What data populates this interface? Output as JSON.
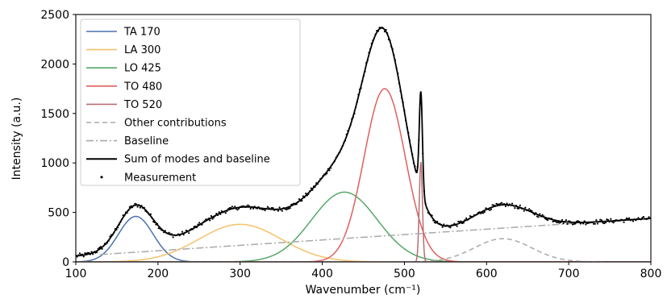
{
  "chart_data": {
    "type": "line",
    "title": "",
    "xlabel": "Wavenumber (cm⁻¹)",
    "ylabel": "Intensity (a.u.)",
    "xlim": [
      100,
      800
    ],
    "ylim": [
      0,
      2500
    ],
    "xticks": [
      100,
      200,
      300,
      400,
      500,
      600,
      700,
      800
    ],
    "yticks": [
      0,
      500,
      1000,
      1500,
      2000,
      2500
    ],
    "grid": false,
    "legend_position": "top-left",
    "series": [
      {
        "name": "TA 170",
        "kind": "gaussian",
        "color": "#4c72b0",
        "style": "solid",
        "center": 173,
        "amplitude": 460,
        "fwhm": 50
      },
      {
        "name": "LA 300",
        "kind": "gaussian",
        "color": "#f5c26b",
        "style": "solid",
        "center": 300,
        "amplitude": 380,
        "fwhm": 118
      },
      {
        "name": "LO 425",
        "kind": "gaussian",
        "color": "#55a868",
        "style": "solid",
        "center": 427,
        "amplitude": 705,
        "fwhm": 94
      },
      {
        "name": "TO 480",
        "kind": "gaussian",
        "color": "#e0605e",
        "style": "solid",
        "center": 476,
        "amplitude": 1750,
        "fwhm": 59
      },
      {
        "name": "TO 520",
        "kind": "gaussian",
        "color": "#b56f72",
        "style": "solid",
        "center": 520,
        "amplitude": 1010,
        "fwhm": 4.5
      },
      {
        "name": "Other contributions",
        "kind": "gaussian",
        "color": "#a9a9a9",
        "style": "dashed",
        "center": 620,
        "amplitude": 235,
        "fwhm": 82
      },
      {
        "name": "Baseline",
        "kind": "linear",
        "color": "#a9a9a9",
        "style": "dashdot",
        "x": [
          130,
          800
        ],
        "values": [
          75,
          440
        ]
      },
      {
        "name": "Sum of modes and baseline",
        "kind": "sum",
        "color": "#000000",
        "style": "solid"
      },
      {
        "name": "Measurement",
        "kind": "points",
        "color": "#000000",
        "style": "dots",
        "noise_amplitude": 22
      }
    ]
  }
}
